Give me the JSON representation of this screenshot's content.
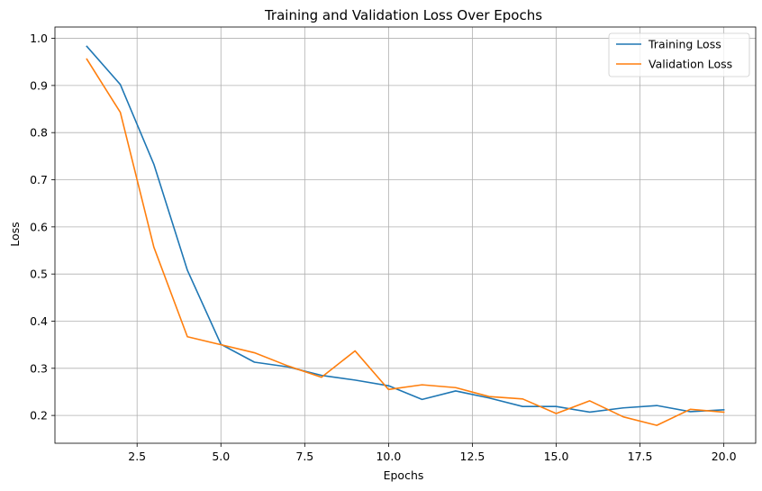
{
  "chart_data": {
    "type": "line",
    "title": "Training and Validation Loss Over Epochs",
    "xlabel": "Epochs",
    "ylabel": "Loss",
    "xlim": [
      0.05,
      20.95
    ],
    "ylim": [
      0.141,
      1.024
    ],
    "xticks": [
      2.5,
      5.0,
      7.5,
      10.0,
      12.5,
      15.0,
      17.5,
      20.0
    ],
    "xtick_labels": [
      "2.5",
      "5.0",
      "7.5",
      "10.0",
      "12.5",
      "15.0",
      "17.5",
      "20.0"
    ],
    "yticks": [
      0.2,
      0.3,
      0.4,
      0.5,
      0.6,
      0.7,
      0.8,
      0.9,
      1.0
    ],
    "ytick_labels": [
      "0.2",
      "0.3",
      "0.4",
      "0.5",
      "0.6",
      "0.7",
      "0.8",
      "0.9",
      "1.0"
    ],
    "grid": true,
    "legend_position": "top-right",
    "x": [
      1,
      2,
      3,
      4,
      5,
      6,
      7,
      8,
      9,
      10,
      11,
      12,
      13,
      14,
      15,
      16,
      17,
      18,
      19,
      20
    ],
    "series": [
      {
        "name": "Training Loss",
        "color": "#1f77b4",
        "values": [
          0.983,
          0.902,
          0.733,
          0.508,
          0.351,
          0.313,
          0.303,
          0.285,
          0.275,
          0.263,
          0.234,
          0.252,
          0.237,
          0.219,
          0.219,
          0.207,
          0.216,
          0.221,
          0.208,
          0.212
        ]
      },
      {
        "name": "Validation Loss",
        "color": "#ff7f0e",
        "values": [
          0.956,
          0.843,
          0.557,
          0.367,
          0.35,
          0.333,
          0.305,
          0.281,
          0.337,
          0.255,
          0.265,
          0.259,
          0.24,
          0.235,
          0.204,
          0.231,
          0.197,
          0.179,
          0.213,
          0.207
        ]
      }
    ]
  }
}
